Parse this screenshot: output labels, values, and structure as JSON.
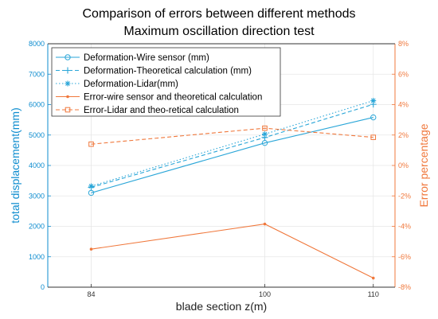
{
  "chart_data": {
    "type": "line",
    "title": [
      "Comparison of errors between different methods",
      "Maximum oscillation direction test"
    ],
    "xlabel": "blade section z(m)",
    "ylabel_left": "total displacement(mm)",
    "ylabel_right": "Error percentage",
    "x": [
      84,
      100,
      110
    ],
    "x_ticks": [
      "84",
      "100",
      "110"
    ],
    "ylim_left": [
      0,
      8000
    ],
    "yticks_left": [
      "0",
      "1000",
      "2000",
      "3000",
      "4000",
      "5000",
      "6000",
      "7000",
      "8000"
    ],
    "ylim_right": [
      -8,
      8
    ],
    "yticks_right": [
      "-8%",
      "-6%",
      "-4%",
      "-2%",
      "0%",
      "2%",
      "4%",
      "6%",
      "8%"
    ],
    "grid": true,
    "legend_position": "top-left",
    "series": [
      {
        "name": "Deformation-Wire sensor (mm)",
        "axis": "left",
        "values": [
          3100,
          4740,
          5580
        ],
        "color": "#2aa6d8",
        "line": "solid",
        "marker": "circle"
      },
      {
        "name": "Deformation-Theoretical calculation (mm)",
        "axis": "left",
        "values": [
          3280,
          4920,
          6010
        ],
        "color": "#2aa6d8",
        "line": "dashed",
        "marker": "plus"
      },
      {
        "name": "Deformation-Lidar(mm)",
        "axis": "left",
        "values": [
          3320,
          5030,
          6130
        ],
        "color": "#2aa6d8",
        "line": "dotted",
        "marker": "asterisk"
      },
      {
        "name": "Error-wire sensor and theoretical calculation",
        "axis": "right",
        "values": [
          -5.5,
          -3.85,
          -7.4
        ],
        "color": "#f0783c",
        "line": "solid",
        "marker": "dot"
      },
      {
        "name": "Error-Lidar and theo-retical calculation",
        "axis": "right",
        "values": [
          1.4,
          2.45,
          1.85
        ],
        "color": "#f0783c",
        "line": "dashed",
        "marker": "square"
      }
    ]
  }
}
